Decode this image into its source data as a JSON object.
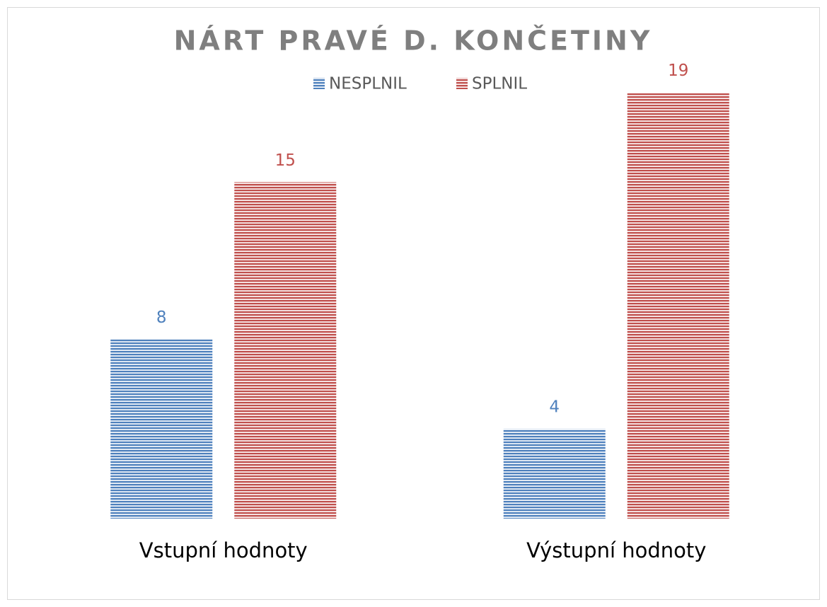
{
  "chart_data": {
    "type": "bar",
    "title": "NÁRT PRAVÉ D. KONČETINY",
    "categories": [
      "Vstupní hodnoty",
      "Výstupní hodnoty"
    ],
    "series": [
      {
        "name": "NESPLNIL",
        "color": "#4f81bd",
        "values": [
          8,
          4
        ]
      },
      {
        "name": "SPLNIL",
        "color": "#c0504d",
        "values": [
          15,
          19
        ]
      }
    ],
    "ylim": [
      0,
      20
    ],
    "grid": false,
    "legend": "top"
  }
}
